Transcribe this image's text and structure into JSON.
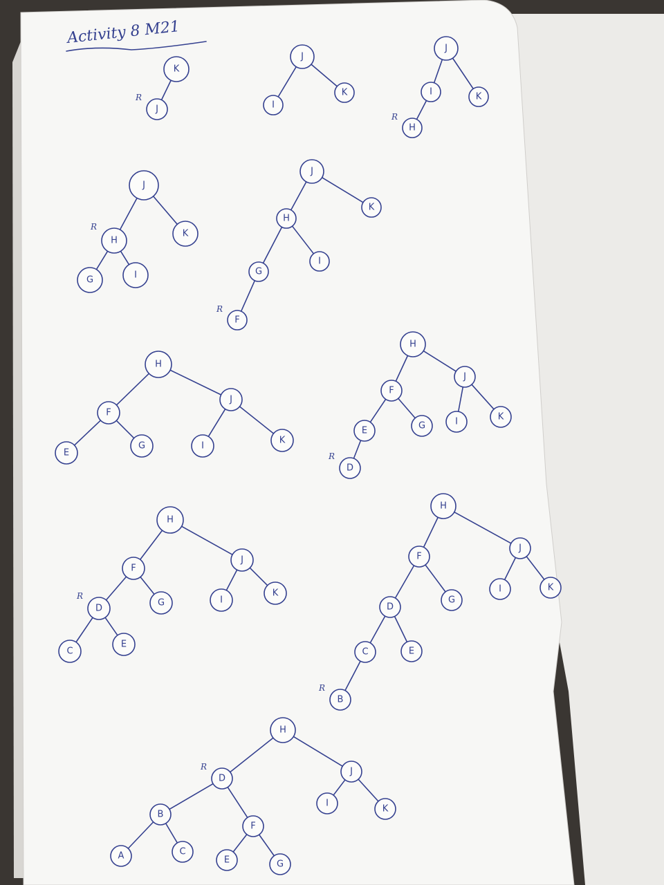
{
  "heading": "Activity 8 M21",
  "rotation_marker": "R",
  "ink_color": "#34408f",
  "paper_color": "#f7f7f5",
  "trees": [
    {
      "nodes": [
        "K",
        "J"
      ],
      "edges": [
        [
          0,
          1
        ]
      ],
      "r_mark_on": 1
    },
    {
      "nodes": [
        "J",
        "I",
        "K"
      ],
      "edges": [
        [
          0,
          1
        ],
        [
          0,
          2
        ]
      ]
    },
    {
      "nodes": [
        "J",
        "I",
        "K",
        "H"
      ],
      "edges": [
        [
          0,
          1
        ],
        [
          0,
          2
        ],
        [
          1,
          3
        ]
      ],
      "r_mark_on": 3
    },
    {
      "nodes": [
        "J",
        "H",
        "K",
        "G",
        "I"
      ],
      "edges": [
        [
          0,
          1
        ],
        [
          0,
          2
        ],
        [
          1,
          3
        ],
        [
          1,
          4
        ]
      ],
      "r_mark_on": 1
    },
    {
      "nodes": [
        "J",
        "H",
        "K",
        "G",
        "I",
        "F"
      ],
      "edges": [
        [
          0,
          1
        ],
        [
          0,
          2
        ],
        [
          1,
          3
        ],
        [
          1,
          4
        ],
        [
          3,
          5
        ]
      ],
      "r_mark_on": 5
    },
    {
      "nodes": [
        "H",
        "F",
        "J",
        "E",
        "G",
        "I",
        "K"
      ],
      "edges": [
        [
          0,
          1
        ],
        [
          0,
          2
        ],
        [
          1,
          3
        ],
        [
          1,
          4
        ],
        [
          2,
          5
        ],
        [
          2,
          6
        ]
      ]
    },
    {
      "nodes": [
        "H",
        "F",
        "J",
        "E",
        "G",
        "I",
        "K",
        "D"
      ],
      "edges": [
        [
          0,
          1
        ],
        [
          0,
          2
        ],
        [
          1,
          3
        ],
        [
          1,
          4
        ],
        [
          2,
          5
        ],
        [
          2,
          6
        ],
        [
          3,
          7
        ]
      ],
      "r_mark_on": 7
    },
    {
      "nodes": [
        "H",
        "F",
        "J",
        "D",
        "G",
        "I",
        "K",
        "C",
        "E"
      ],
      "edges": [
        [
          0,
          1
        ],
        [
          0,
          2
        ],
        [
          1,
          3
        ],
        [
          1,
          4
        ],
        [
          2,
          5
        ],
        [
          2,
          6
        ],
        [
          3,
          7
        ],
        [
          3,
          8
        ]
      ],
      "r_mark_on": 3
    },
    {
      "nodes": [
        "H",
        "F",
        "J",
        "D",
        "G",
        "I",
        "K",
        "C",
        "E",
        "B"
      ],
      "edges": [
        [
          0,
          1
        ],
        [
          0,
          2
        ],
        [
          1,
          3
        ],
        [
          1,
          4
        ],
        [
          2,
          5
        ],
        [
          2,
          6
        ],
        [
          3,
          7
        ],
        [
          3,
          8
        ],
        [
          7,
          9
        ]
      ],
      "r_mark_on": 9
    },
    {
      "nodes": [
        "H",
        "D",
        "J",
        "B",
        "F",
        "I",
        "K",
        "A",
        "C",
        "E",
        "G"
      ],
      "edges": [
        [
          0,
          1
        ],
        [
          0,
          2
        ],
        [
          1,
          3
        ],
        [
          1,
          4
        ],
        [
          2,
          5
        ],
        [
          2,
          6
        ],
        [
          3,
          7
        ],
        [
          3,
          8
        ],
        [
          4,
          9
        ],
        [
          4,
          10
        ]
      ],
      "r_mark_on": 1
    }
  ]
}
